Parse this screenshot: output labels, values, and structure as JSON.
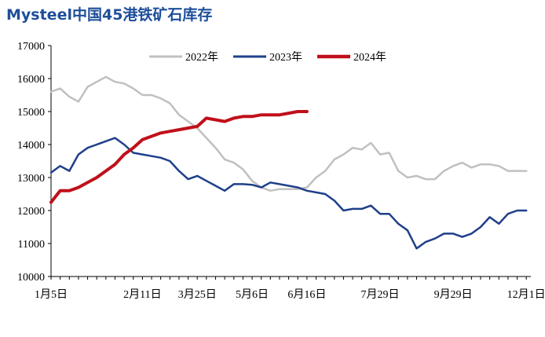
{
  "title": "Mysteel中国45港铁矿石库存",
  "colors": {
    "2022": "#c0c0c0",
    "2023": "#1f3f8a",
    "2024": "#c0101a"
  },
  "chart_data": {
    "type": "line",
    "ylim": [
      10000,
      17000
    ],
    "yticks": [
      10000,
      11000,
      12000,
      13000,
      14000,
      15000,
      16000,
      17000
    ],
    "xticklabels": [
      "1月5日",
      "2月11日",
      "3月25日",
      "5月6日",
      "6月16日",
      "7月29日",
      "9月29日",
      "12月1日"
    ],
    "xtick_index": [
      0,
      10,
      16,
      22,
      28,
      36,
      44,
      52
    ],
    "x_count": 53,
    "legend_position": "top-center",
    "series": [
      {
        "name": "2022年",
        "color": "#c0c0c0",
        "values": [
          15600,
          15700,
          15450,
          15300,
          15750,
          15900,
          16050,
          15900,
          15850,
          15700,
          15500,
          15500,
          15400,
          15250,
          14900,
          14700,
          14500,
          14200,
          13900,
          13550,
          13450,
          13250,
          12900,
          12700,
          12600,
          12650,
          12650,
          12650,
          12700,
          13000,
          13200,
          13550,
          13700,
          13900,
          13850,
          14050,
          13700,
          13750,
          13200,
          13000,
          13050,
          12950,
          12950,
          13200,
          13350,
          13450,
          13300,
          13400,
          13400,
          13350,
          13200,
          13200,
          13200
        ]
      },
      {
        "name": "2023年",
        "color": "#1f3f8a",
        "values": [
          13150,
          13350,
          13200,
          13700,
          13900,
          14000,
          14100,
          14200,
          14000,
          13750,
          13700,
          13650,
          13600,
          13500,
          13200,
          12950,
          13050,
          12900,
          12750,
          12600,
          12800,
          12800,
          12780,
          12700,
          12850,
          12800,
          12750,
          12700,
          12600,
          12550,
          12500,
          12300,
          12000,
          12050,
          12050,
          12150,
          11900,
          11900,
          11600,
          11400,
          10850,
          11050,
          11150,
          11300,
          11300,
          11200,
          11300,
          11500,
          11800,
          11600,
          11900,
          12000,
          12000
        ]
      },
      {
        "name": "2024年",
        "color": "#c0101a",
        "values": [
          12250,
          12600,
          12600,
          12700,
          12850,
          13000,
          13200,
          13400,
          13700,
          13900,
          14150,
          14250,
          14350,
          14400,
          14450,
          14500,
          14550,
          14800,
          14750,
          14700,
          14800,
          14850,
          14850,
          14900,
          14900,
          14900,
          14950,
          15000,
          15000
        ]
      }
    ]
  }
}
